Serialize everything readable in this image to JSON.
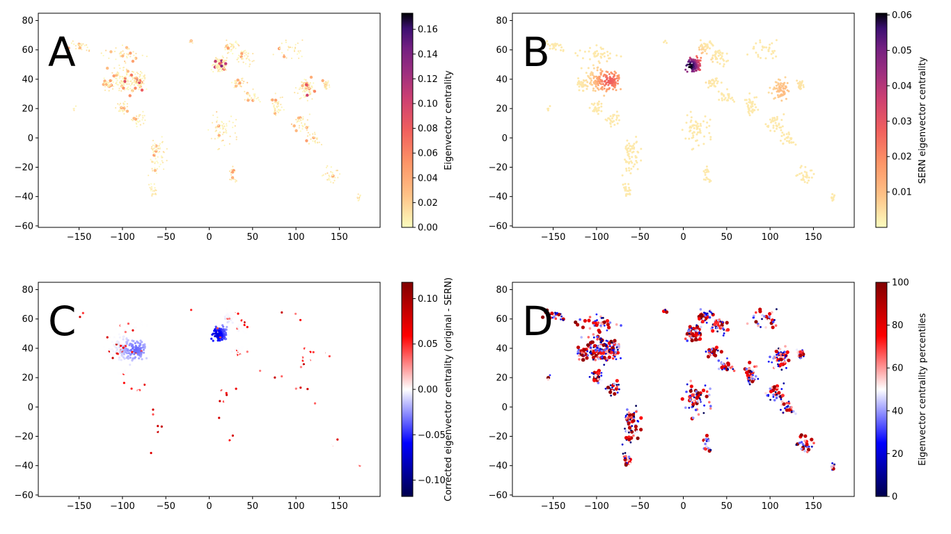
{
  "chart_data": [
    {
      "type": "scatter",
      "panel_label": "A",
      "xlim": [
        -197,
        197
      ],
      "ylim": [
        -61,
        85
      ],
      "xticks": [
        -150,
        -100,
        -50,
        0,
        50,
        100,
        150
      ],
      "yticks": [
        -60,
        -40,
        -20,
        0,
        20,
        40,
        60,
        80
      ],
      "colorbar": {
        "label": "Eigenvector centrality",
        "colormap": "magma_r",
        "range": [
          0,
          0.173
        ],
        "ticks": [
          0.0,
          0.02,
          0.04,
          0.06,
          0.08,
          0.1,
          0.12,
          0.14,
          0.16
        ],
        "tick_labels": [
          "0.00",
          "0.02",
          "0.04",
          "0.06",
          "0.08",
          "0.10",
          "0.12",
          "0.14",
          "0.16"
        ]
      },
      "description_of_points": "airports worldwide; mostly near-zero values, higher values in Europe, US east and East Asia"
    },
    {
      "type": "scatter",
      "panel_label": "B",
      "xlim": [
        -197,
        197
      ],
      "ylim": [
        -61,
        85
      ],
      "xticks": [
        -150,
        -100,
        -50,
        0,
        50,
        100,
        150
      ],
      "yticks": [
        -60,
        -40,
        -20,
        0,
        20,
        40,
        60,
        80
      ],
      "colorbar": {
        "label": "SERN eigenvector centrality",
        "colormap": "magma_r",
        "range": [
          0,
          0.0605
        ],
        "ticks": [
          0.01,
          0.02,
          0.03,
          0.04,
          0.05,
          0.06
        ],
        "tick_labels": [
          "0.01",
          "0.02",
          "0.03",
          "0.04",
          "0.05",
          "0.06"
        ]
      },
      "description_of_points": "smooth spatial field peaking over central Europe (~0.06) with secondary high over eastern North America"
    },
    {
      "type": "scatter",
      "panel_label": "C",
      "xlim": [
        -197,
        197
      ],
      "ylim": [
        -61,
        85
      ],
      "xticks": [
        -150,
        -100,
        -50,
        0,
        50,
        100,
        150
      ],
      "yticks": [
        -60,
        -40,
        -20,
        0,
        20,
        40,
        60,
        80
      ],
      "colorbar": {
        "label": "Corrected eigenvector centrality (original - SERN)",
        "colormap": "seismic",
        "range": [
          -0.118,
          0.118
        ],
        "ticks": [
          -0.1,
          -0.05,
          0.0,
          0.05,
          0.1
        ],
        "tick_labels": [
          "−0.10",
          "−0.05",
          "0.00",
          "0.05",
          "0.10"
        ]
      },
      "description_of_points": "negative (blue) over Europe and North America, scattered positive (red) hubs elsewhere"
    },
    {
      "type": "scatter",
      "panel_label": "D",
      "xlim": [
        -197,
        197
      ],
      "ylim": [
        -61,
        85
      ],
      "xticks": [
        -150,
        -100,
        -50,
        0,
        50,
        100,
        150
      ],
      "yticks": [
        -60,
        -40,
        -20,
        0,
        20,
        40,
        60,
        80
      ],
      "colorbar": {
        "label": "Eigenvector centrality percentiles",
        "colormap": "seismic",
        "range": [
          0,
          100
        ],
        "ticks": [
          0,
          20,
          40,
          60,
          80,
          100
        ],
        "tick_labels": [
          "0",
          "20",
          "40",
          "60",
          "80",
          "100"
        ]
      },
      "description_of_points": "percentiles of corrected centrality; dark red high percentiles dominate coastlines and Asia, blue low percentiles interior"
    }
  ]
}
